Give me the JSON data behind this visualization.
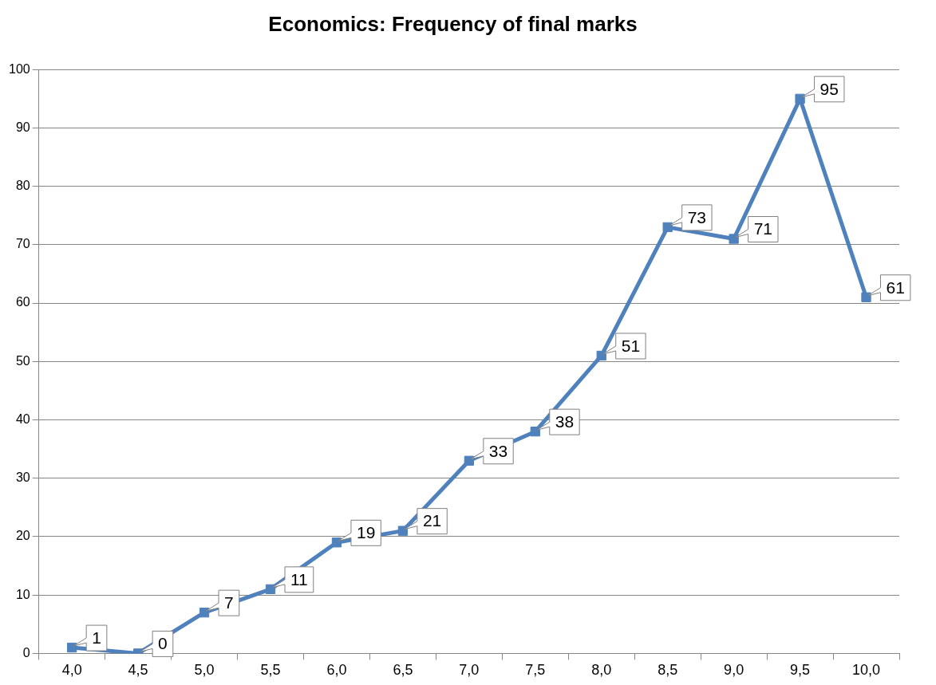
{
  "chart_data": {
    "type": "line",
    "title": "Economics: Frequency of final marks",
    "categories": [
      "4,0",
      "4,5",
      "5,0",
      "5,5",
      "6,0",
      "6,5",
      "7,0",
      "7,5",
      "8,0",
      "8,5",
      "9,0",
      "9,5",
      "10,0"
    ],
    "series": [
      {
        "color": "#4f81bd",
        "values": [
          1,
          0,
          7,
          11,
          19,
          21,
          33,
          38,
          51,
          73,
          71,
          95,
          61
        ]
      }
    ],
    "ylim": [
      0,
      100
    ],
    "yticks": [
      0,
      10,
      20,
      30,
      40,
      50,
      60,
      70,
      80,
      90,
      100
    ],
    "grid": "y",
    "legend": false,
    "marker": "square",
    "line_style": "solid",
    "data_labels": true
  }
}
